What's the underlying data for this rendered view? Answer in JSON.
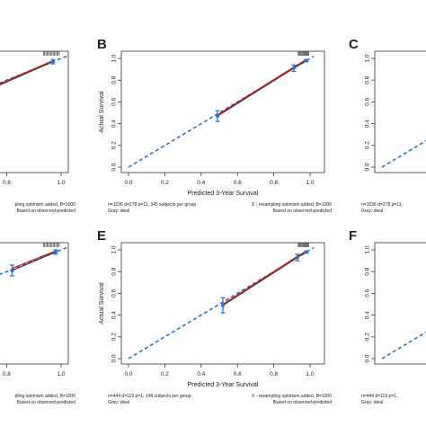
{
  "panels": [
    {
      "letter": "",
      "xlabel": "",
      "ylabel": "",
      "xticks": [
        "0.8",
        "1.0"
      ],
      "yticks": [],
      "footer_left": "",
      "footer_left2": "",
      "footer_right": "pling optimism added, B=1000",
      "footer_right2": "Based on observed-predicted"
    },
    {
      "letter": "B",
      "xlabel": "Predicted 3-Year Survival",
      "ylabel": "Actual Survival",
      "xticks": [
        "0.0",
        "0.2",
        "0.4",
        "0.6",
        "0.8",
        "1.0"
      ],
      "yticks": [
        "0.0",
        "0.2",
        "0.4",
        "0.6",
        "0.8",
        "1.0"
      ],
      "footer_left": "n=1036 d=278 p=11, 345 subjects per group",
      "footer_left2": "Gray: ideal",
      "footer_right": "X - resampling optimism added, B=1000",
      "footer_right2": "Based on observed-predicted"
    },
    {
      "letter": "C",
      "xlabel": "",
      "ylabel": "",
      "xticks": [],
      "yticks": [
        "0.0",
        "0.2",
        "0.4",
        "0.6",
        "0.8",
        "1.0"
      ],
      "footer_left": "n=1036 d=278 p=11,",
      "footer_left2": "Gray: ideal",
      "footer_right": "",
      "footer_right2": ""
    },
    {
      "letter": "",
      "xlabel": "",
      "ylabel": "",
      "xticks": [
        "0.8",
        "1.0"
      ],
      "yticks": [],
      "footer_left": "",
      "footer_left2": "",
      "footer_right": "pling optimism added, B=1000",
      "footer_right2": "Based on observed-predicted"
    },
    {
      "letter": "E",
      "xlabel": "Predicted 3-Year Survival",
      "ylabel": "Actual Survival",
      "xticks": [
        "0.0",
        "0.2",
        "0.4",
        "0.6",
        "0.8",
        "1.0"
      ],
      "yticks": [
        "0.0",
        "0.2",
        "0.4",
        "0.6",
        "0.8",
        "1.0"
      ],
      "footer_left": "n=444 d=119 p=1, 148 subjects per group",
      "footer_left2": "Gray: ideal",
      "footer_right": "X - resampling optimism added, B=1000",
      "footer_right2": "Based on observed-predicted"
    },
    {
      "letter": "F",
      "xlabel": "",
      "ylabel": "",
      "xticks": [],
      "yticks": [
        "0.0",
        "0.2",
        "0.4",
        "0.6",
        "0.8",
        "1.0"
      ],
      "footer_left": "n=444 d=119 p=1,",
      "footer_left2": "Gray: ideal",
      "footer_right": "",
      "footer_right2": ""
    }
  ],
  "chart_data": [
    {
      "panel": "A",
      "type": "line",
      "xlim": [
        0,
        1
      ],
      "ylim": [
        0,
        1
      ],
      "points": [
        {
          "x": 0.75,
          "y": 0.73,
          "err": 0.04
        },
        {
          "x": 0.97,
          "y": 0.97,
          "err": 0.02
        }
      ],
      "corrected": [
        [
          0.75,
          0.74
        ],
        [
          0.97,
          0.98
        ]
      ]
    },
    {
      "panel": "B",
      "type": "line",
      "xlim": [
        0,
        1
      ],
      "ylim": [
        0,
        1
      ],
      "points": [
        {
          "x": 0.49,
          "y": 0.47,
          "err": 0.05
        },
        {
          "x": 0.91,
          "y": 0.91,
          "err": 0.03
        },
        {
          "x": 0.98,
          "y": 0.98,
          "err": 0.01
        }
      ],
      "corrected": [
        [
          0.49,
          0.48
        ],
        [
          0.91,
          0.92
        ],
        [
          0.98,
          0.99
        ]
      ]
    },
    {
      "panel": "C",
      "type": "line",
      "xlim": [
        0,
        1
      ],
      "ylim": [
        0,
        1
      ],
      "points": [],
      "corrected": []
    },
    {
      "panel": "D",
      "type": "line",
      "xlim": [
        0,
        1
      ],
      "ylim": [
        0,
        1
      ],
      "points": [
        {
          "x": 0.82,
          "y": 0.81,
          "err": 0.05
        },
        {
          "x": 0.98,
          "y": 0.98,
          "err": 0.02
        }
      ],
      "corrected": [
        [
          0.82,
          0.83
        ],
        [
          0.98,
          0.99
        ]
      ]
    },
    {
      "panel": "E",
      "type": "line",
      "xlim": [
        0,
        1
      ],
      "ylim": [
        0,
        1
      ],
      "points": [
        {
          "x": 0.52,
          "y": 0.49,
          "err": 0.07
        },
        {
          "x": 0.93,
          "y": 0.93,
          "err": 0.03
        },
        {
          "x": 0.98,
          "y": 0.98,
          "err": 0.01
        }
      ],
      "corrected": [
        [
          0.52,
          0.5
        ],
        [
          0.93,
          0.94
        ],
        [
          0.98,
          0.99
        ]
      ]
    },
    {
      "panel": "F",
      "type": "line",
      "xlim": [
        0,
        1
      ],
      "ylim": [
        0,
        1
      ],
      "points": [],
      "corrected": []
    }
  ],
  "colors": {
    "ideal": "#2a6fc9",
    "apparent": "#333333",
    "corrected": "#cc2222",
    "points": "#2a6fc9"
  }
}
